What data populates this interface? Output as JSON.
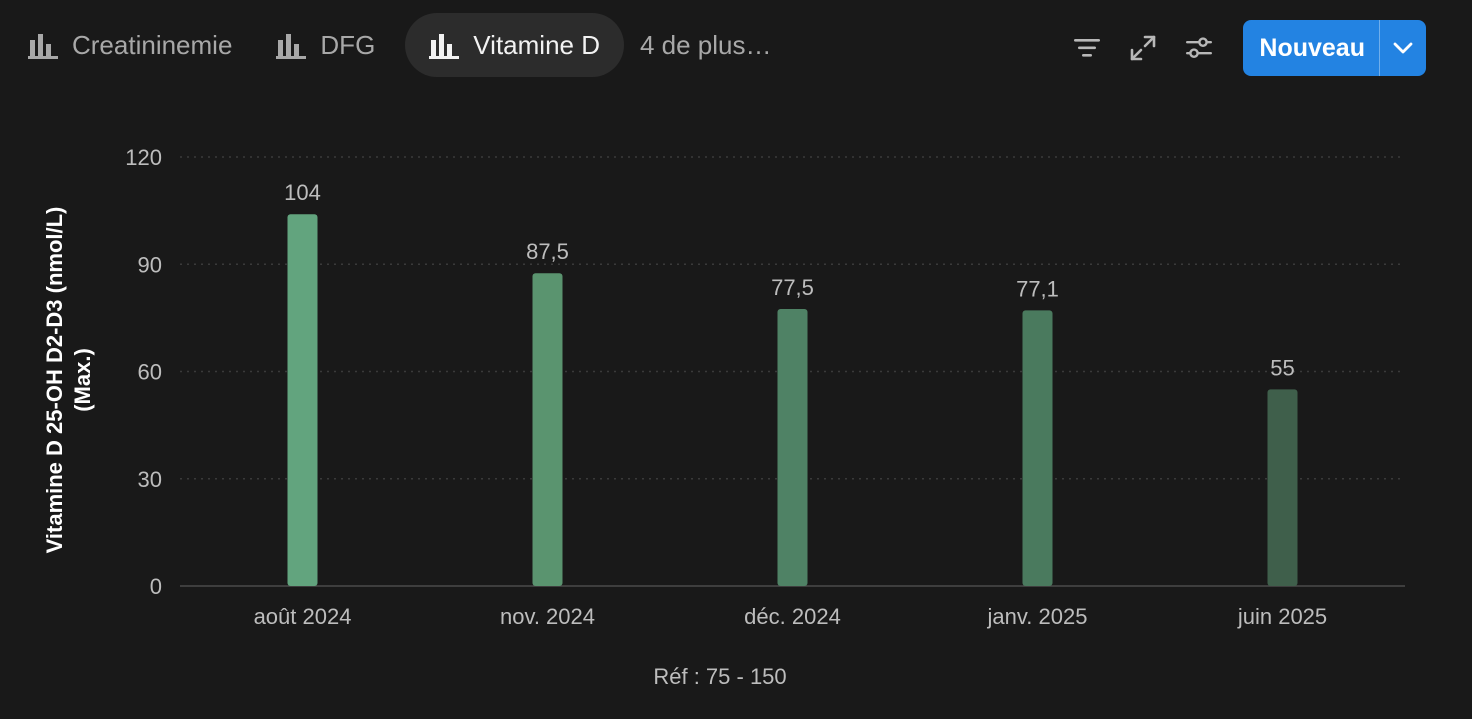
{
  "tabs": [
    {
      "label": "Creatininemie",
      "icon": "bar-chart-icon",
      "active": false
    },
    {
      "label": "DFG",
      "icon": "bar-chart-icon",
      "active": false
    },
    {
      "label": "Vitamine D",
      "icon": "bar-chart-icon",
      "active": true
    }
  ],
  "more_tabs_label": "4 de plus…",
  "toolbar": {
    "icons": [
      "filter-icon",
      "expand-icon",
      "settings-sliders-icon"
    ],
    "new_label": "Nouveau"
  },
  "colors": {
    "background": "#191919",
    "accent": "#2383e2",
    "bars": [
      "#62a47e",
      "#5a946f",
      "#4f8265",
      "#4a7a5e",
      "#3f5f4b"
    ]
  },
  "chart_data": {
    "type": "bar",
    "categories": [
      "août 2024",
      "nov. 2024",
      "déc. 2024",
      "janv. 2025",
      "juin 2025"
    ],
    "values": [
      104,
      87.5,
      77.5,
      77.1,
      55
    ],
    "data_labels": [
      "104",
      "87,5",
      "77,5",
      "77,1",
      "55"
    ],
    "ylabel_line1": "Vitamine D 25-OH D2-D3 (nmol/L)",
    "ylabel_line2": "(Max.)",
    "yticks": [
      0,
      30,
      60,
      90,
      120
    ],
    "ylim": [
      0,
      120
    ],
    "grid": true,
    "footer": "Réf : 75 - 150"
  }
}
